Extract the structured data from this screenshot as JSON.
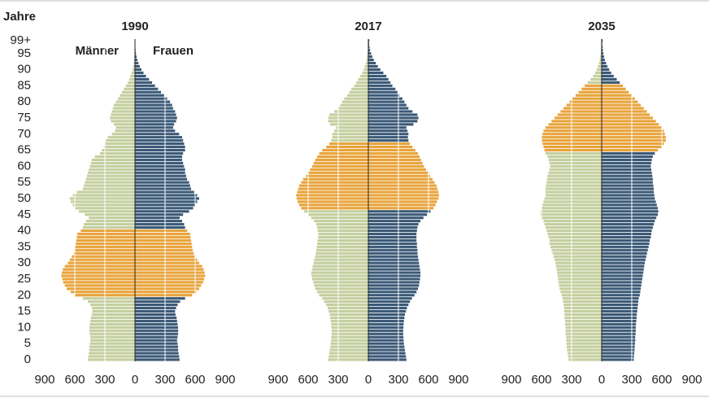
{
  "chart_data": [
    {
      "type": "pyramid",
      "title": "1990",
      "ylabel": "Jahre",
      "categories": [
        0,
        null,
        null,
        null,
        null,
        5,
        null,
        null,
        null,
        null,
        10,
        null,
        null,
        null,
        null,
        15,
        null,
        null,
        null,
        null,
        20,
        null,
        null,
        null,
        null,
        25,
        null,
        null,
        null,
        null,
        30,
        null,
        null,
        null,
        null,
        35,
        null,
        null,
        null,
        null,
        40,
        null,
        null,
        null,
        null,
        45,
        null,
        null,
        null,
        null,
        50,
        null,
        null,
        null,
        null,
        55,
        null,
        null,
        null,
        null,
        60,
        null,
        null,
        null,
        null,
        65,
        null,
        null,
        null,
        null,
        70,
        null,
        null,
        null,
        null,
        75,
        null,
        null,
        null,
        null,
        80,
        null,
        null,
        null,
        null,
        85,
        null,
        null,
        null,
        null,
        90,
        null,
        null,
        null,
        null,
        95,
        null,
        null,
        null,
        "99+"
      ],
      "xlim": [
        -900,
        900
      ],
      "xticks": [
        {
          "value": -900,
          "label": "900"
        },
        {
          "value": -600,
          "label": "600"
        },
        {
          "value": -300,
          "label": "300"
        },
        0,
        300,
        600,
        900
      ],
      "highlight": {
        "range": [
          20,
          40
        ],
        "color": "#e8a43c"
      },
      "series": [
        {
          "name": "Männer",
          "color": "#c5cf9f",
          "values": [
            470,
            465,
            460,
            455,
            455,
            450,
            445,
            445,
            450,
            455,
            455,
            450,
            445,
            440,
            430,
            425,
            430,
            445,
            470,
            520,
            600,
            640,
            680,
            700,
            715,
            725,
            735,
            730,
            720,
            700,
            670,
            650,
            630,
            610,
            600,
            595,
            590,
            585,
            580,
            575,
            540,
            520,
            510,
            490,
            460,
            500,
            560,
            600,
            620,
            640,
            650,
            620,
            580,
            520,
            510,
            500,
            490,
            480,
            470,
            460,
            450,
            440,
            430,
            400,
            350,
            330,
            310,
            300,
            290,
            270,
            230,
            200,
            190,
            210,
            240,
            250,
            240,
            230,
            220,
            210,
            190,
            170,
            150,
            130,
            110,
            90,
            70,
            55,
            45,
            35,
            25,
            18,
            12,
            8,
            5,
            3,
            2,
            1,
            1,
            1
          ]
        },
        {
          "name": "Frauen",
          "color": "#3c5a78",
          "values": [
            445,
            440,
            435,
            430,
            430,
            425,
            420,
            425,
            430,
            430,
            430,
            425,
            420,
            415,
            405,
            400,
            410,
            425,
            450,
            500,
            570,
            610,
            640,
            660,
            680,
            690,
            700,
            695,
            685,
            670,
            640,
            620,
            600,
            585,
            575,
            570,
            565,
            560,
            555,
            550,
            520,
            500,
            490,
            470,
            445,
            480,
            540,
            580,
            600,
            620,
            640,
            620,
            590,
            560,
            550,
            540,
            520,
            510,
            500,
            500,
            490,
            480,
            470,
            470,
            480,
            500,
            500,
            490,
            480,
            470,
            440,
            400,
            380,
            390,
            410,
            420,
            410,
            400,
            380,
            370,
            350,
            320,
            290,
            260,
            230,
            200,
            170,
            140,
            110,
            85,
            65,
            48,
            35,
            24,
            16,
            10,
            6,
            4,
            2,
            2
          ]
        }
      ]
    },
    {
      "type": "pyramid",
      "title": "2017",
      "xlim": [
        -900,
        900
      ],
      "xticks": [
        {
          "value": -900,
          "label": "900"
        },
        {
          "value": -600,
          "label": "600"
        },
        {
          "value": -300,
          "label": "300"
        },
        0,
        300,
        600,
        900
      ],
      "highlight": {
        "range": [
          47,
          67
        ],
        "color": "#e8a43c"
      },
      "series": [
        {
          "color": "#c5cf9f",
          "values": [
            400,
            395,
            390,
            385,
            380,
            375,
            370,
            370,
            365,
            365,
            370,
            370,
            375,
            380,
            385,
            395,
            405,
            420,
            440,
            460,
            490,
            510,
            530,
            540,
            550,
            560,
            565,
            570,
            560,
            555,
            545,
            540,
            530,
            525,
            520,
            515,
            510,
            505,
            500,
            500,
            505,
            510,
            520,
            540,
            570,
            600,
            640,
            670,
            690,
            705,
            715,
            720,
            710,
            700,
            690,
            670,
            650,
            620,
            600,
            580,
            560,
            545,
            530,
            510,
            490,
            460,
            420,
            390,
            370,
            360,
            360,
            340,
            320,
            380,
            400,
            400,
            390,
            340,
            300,
            280,
            260,
            240,
            210,
            190,
            170,
            140,
            120,
            100,
            80,
            60,
            45,
            35,
            25,
            18,
            12,
            8,
            5,
            3,
            2,
            2
          ]
        },
        {
          "color": "#3c5a78",
          "values": [
            380,
            375,
            370,
            365,
            360,
            355,
            352,
            350,
            348,
            348,
            350,
            352,
            355,
            360,
            365,
            375,
            385,
            400,
            415,
            435,
            460,
            480,
            495,
            505,
            510,
            515,
            520,
            520,
            515,
            510,
            505,
            500,
            495,
            490,
            490,
            485,
            485,
            480,
            480,
            480,
            485,
            490,
            500,
            520,
            550,
            585,
            620,
            650,
            670,
            685,
            700,
            705,
            700,
            690,
            680,
            660,
            640,
            615,
            595,
            575,
            555,
            540,
            525,
            510,
            495,
            470,
            440,
            415,
            400,
            395,
            400,
            390,
            380,
            450,
            490,
            500,
            490,
            440,
            400,
            380,
            360,
            340,
            310,
            290,
            270,
            240,
            220,
            200,
            180,
            150,
            120,
            95,
            75,
            55,
            40,
            28,
            18,
            12,
            8,
            10
          ]
        }
      ]
    },
    {
      "type": "pyramid",
      "title": "2035",
      "xlim": [
        -900,
        900
      ],
      "xticks": [
        {
          "value": -900,
          "label": "900"
        },
        {
          "value": -600,
          "label": "600"
        },
        {
          "value": -300,
          "label": "300"
        },
        0,
        300,
        600,
        900
      ],
      "highlight": {
        "range": [
          65,
          85
        ],
        "color": "#e8a43c"
      },
      "series": [
        {
          "color": "#c5cf9f",
          "values": [
            330,
            335,
            340,
            345,
            350,
            350,
            355,
            355,
            360,
            360,
            360,
            365,
            365,
            370,
            370,
            375,
            375,
            380,
            385,
            390,
            400,
            410,
            420,
            425,
            430,
            435,
            440,
            445,
            450,
            455,
            460,
            470,
            480,
            490,
            500,
            510,
            520,
            520,
            530,
            540,
            550,
            560,
            570,
            580,
            600,
            610,
            610,
            600,
            590,
            580,
            570,
            560,
            560,
            560,
            555,
            550,
            545,
            540,
            530,
            520,
            515,
            520,
            530,
            540,
            560,
            570,
            580,
            590,
            600,
            600,
            590,
            580,
            560,
            530,
            500,
            470,
            440,
            410,
            380,
            350,
            320,
            290,
            260,
            230,
            200,
            170,
            140,
            110,
            85,
            65,
            50,
            38,
            28,
            20,
            14,
            10,
            7,
            5,
            3,
            5
          ]
        },
        {
          "color": "#3c5a78",
          "values": [
            320,
            322,
            325,
            328,
            330,
            332,
            335,
            335,
            338,
            340,
            340,
            342,
            345,
            348,
            350,
            355,
            358,
            362,
            365,
            370,
            380,
            385,
            390,
            395,
            400,
            405,
            410,
            415,
            420,
            425,
            430,
            438,
            445,
            452,
            460,
            468,
            475,
            480,
            490,
            495,
            500,
            510,
            520,
            530,
            545,
            560,
            565,
            560,
            550,
            540,
            530,
            525,
            520,
            520,
            515,
            510,
            510,
            505,
            500,
            495,
            490,
            495,
            500,
            510,
            530,
            560,
            600,
            620,
            640,
            640,
            630,
            620,
            600,
            570,
            540,
            510,
            480,
            450,
            420,
            390,
            360,
            330,
            300,
            270,
            240,
            210,
            180,
            150,
            120,
            95,
            75,
            58,
            44,
            32,
            24,
            17,
            12,
            9,
            6,
            10
          ]
        }
      ]
    }
  ]
}
